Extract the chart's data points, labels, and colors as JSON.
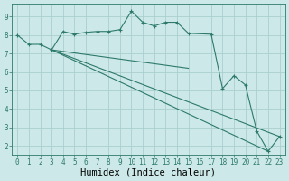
{
  "xlabel": "Humidex (Indice chaleur)",
  "ylabel": "",
  "bg_color": "#cce8e8",
  "grid_color": "#aacfcf",
  "line_color": "#2d7a6a",
  "xlim": [
    -0.5,
    23.5
  ],
  "ylim": [
    1.5,
    9.7
  ],
  "xticks": [
    0,
    1,
    2,
    3,
    4,
    5,
    6,
    7,
    8,
    9,
    10,
    11,
    12,
    13,
    14,
    15,
    16,
    17,
    18,
    19,
    20,
    21,
    22,
    23
  ],
  "yticks": [
    2,
    3,
    4,
    5,
    6,
    7,
    8,
    9
  ],
  "series": [
    {
      "x": [
        0,
        1,
        2,
        3,
        4,
        5,
        6,
        7,
        8,
        9,
        10,
        11,
        12,
        13,
        14,
        15,
        17,
        18,
        19,
        20,
        21,
        22,
        23
      ],
      "y": [
        8.0,
        7.5,
        7.5,
        7.2,
        8.2,
        8.05,
        8.15,
        8.2,
        8.2,
        8.3,
        9.3,
        8.7,
        8.5,
        8.7,
        8.7,
        8.1,
        8.05,
        5.1,
        5.8,
        5.3,
        2.8,
        1.7,
        2.5
      ],
      "has_markers": true
    },
    {
      "x": [
        3,
        23
      ],
      "y": [
        7.2,
        2.5
      ],
      "has_markers": false
    },
    {
      "x": [
        3,
        22
      ],
      "y": [
        7.2,
        1.7
      ],
      "has_markers": false
    },
    {
      "x": [
        3,
        15
      ],
      "y": [
        7.2,
        6.2
      ],
      "has_markers": false
    }
  ],
  "tick_label_fontsize": 5.5,
  "xlabel_fontsize": 7.5
}
